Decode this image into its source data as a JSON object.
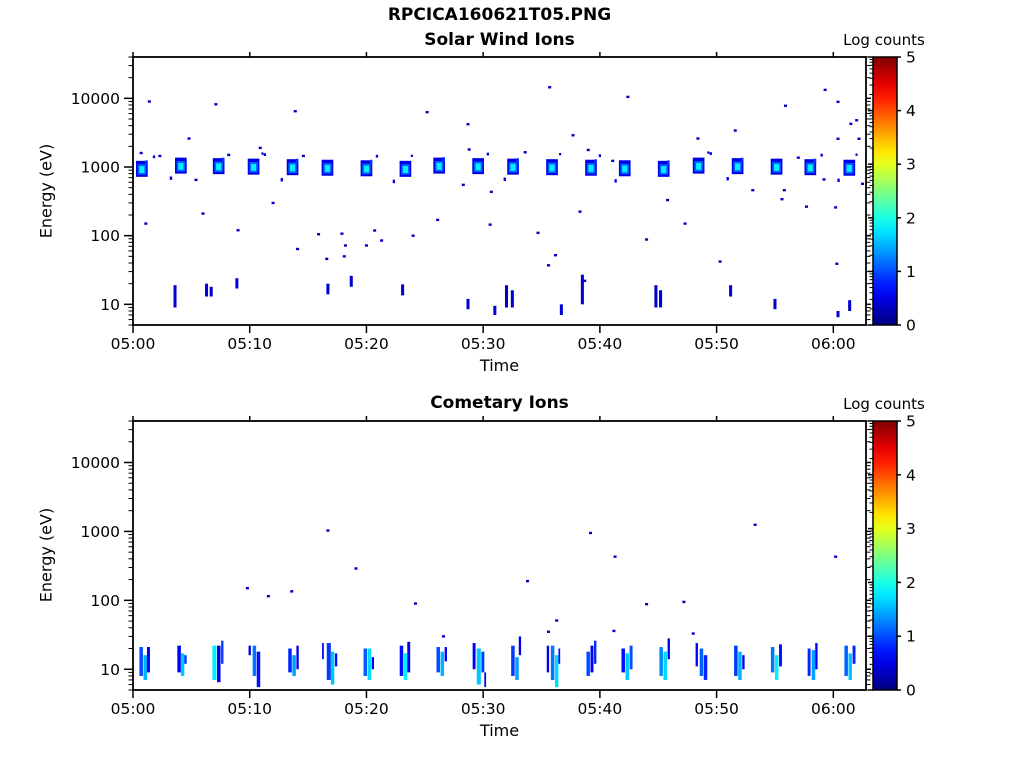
{
  "figure": {
    "title": "RPCICA160621T05.PNG",
    "background": "#ffffff",
    "axis_color": "#000000",
    "text_color": "#000000"
  },
  "colormap": {
    "name": "jet",
    "low_color": "#000080",
    "high_color": "#800000"
  },
  "chart_data": [
    {
      "type": "heatmap",
      "title": "Solar Wind Ions",
      "xlabel": "Time",
      "ylabel": "Energy (eV)",
      "x_tick_labels": [
        "05:00",
        "05:10",
        "05:20",
        "05:30",
        "05:40",
        "05:50",
        "06:00"
      ],
      "x_tick_minutes": [
        0,
        10,
        20,
        30,
        40,
        50,
        60
      ],
      "x_range_minutes": [
        0,
        62.8
      ],
      "y_scale": "log",
      "y_range_ev": [
        5,
        40000
      ],
      "y_tick_labels": [
        "10",
        "100",
        "1000",
        "10000"
      ],
      "y_tick_values": [
        10,
        100,
        1000,
        10000
      ],
      "grid": false,
      "colorbar_title": "Log counts",
      "colorbar_ticks": [
        "0",
        "1",
        "2",
        "3",
        "4",
        "5"
      ],
      "colorbar_range": [
        0,
        5
      ],
      "beam_band": {
        "description": "solar wind beam blobs repeating ~every 3.2 min",
        "energy_ev": [
          700,
          1350
        ],
        "core_energy_ev": [
          860,
          1100
        ],
        "edge_log_counts": 0.5,
        "mid_log_counts": 1.1,
        "core_log_counts": 1.8,
        "blob_halfwidth_min": 0.5,
        "blob_times_min": [
          0.9,
          4.1,
          7.2,
          10.4,
          13.6,
          16.8,
          20.0,
          23.2,
          26.3,
          29.5,
          32.7,
          35.9,
          39.1,
          42.2,
          45.4,
          48.6,
          51.8,
          55.0,
          58.1,
          61.3
        ]
      },
      "scatter_log_counts": 0.35,
      "scatter_points": [
        [
          0.7,
          1600
        ],
        [
          1.4,
          9000
        ],
        [
          1.1,
          150
        ],
        [
          2.3,
          1450
        ],
        [
          4.8,
          2600
        ],
        [
          5.4,
          650
        ],
        [
          6.0,
          210
        ],
        [
          7.1,
          8200
        ],
        [
          8.2,
          1500
        ],
        [
          9.0,
          120
        ],
        [
          10.9,
          1900
        ],
        [
          12.0,
          300
        ],
        [
          13.9,
          6500
        ],
        [
          14.1,
          64
        ],
        [
          14.6,
          1450
        ],
        [
          15.9,
          105
        ],
        [
          16.6,
          46
        ],
        [
          17.9,
          107
        ],
        [
          18.2,
          72
        ],
        [
          18.1,
          50
        ],
        [
          20.0,
          72
        ],
        [
          20.7,
          119
        ],
        [
          21.3,
          85
        ],
        [
          24.0,
          100
        ],
        [
          25.2,
          6300
        ],
        [
          26.1,
          170
        ],
        [
          28.3,
          550
        ],
        [
          28.7,
          4200
        ],
        [
          28.8,
          1800
        ],
        [
          30.6,
          145
        ],
        [
          30.7,
          435
        ],
        [
          33.6,
          1640
        ],
        [
          34.7,
          110
        ],
        [
          35.7,
          14500
        ],
        [
          35.6,
          37
        ],
        [
          36.2,
          52
        ],
        [
          37.7,
          2900
        ],
        [
          38.3,
          224
        ],
        [
          38.7,
          22
        ],
        [
          39.0,
          1770
        ],
        [
          41.1,
          1230
        ],
        [
          42.4,
          10500
        ],
        [
          44.0,
          88
        ],
        [
          45.8,
          330
        ],
        [
          47.3,
          150
        ],
        [
          48.4,
          2600
        ],
        [
          50.3,
          42
        ],
        [
          51.6,
          3400
        ],
        [
          53.1,
          460
        ],
        [
          55.6,
          340
        ],
        [
          55.8,
          460
        ],
        [
          55.9,
          7800
        ],
        [
          57.0,
          1370
        ],
        [
          57.7,
          265
        ],
        [
          59.2,
          660
        ],
        [
          59.3,
          13300
        ],
        [
          60.2,
          258
        ],
        [
          60.3,
          39
        ],
        [
          60.4,
          8900
        ],
        [
          60.4,
          2580
        ],
        [
          61.5,
          4260
        ],
        [
          62.0,
          4800
        ],
        [
          62.2,
          2580
        ],
        [
          62.5,
          570
        ]
      ],
      "bar_log_counts": 0.4,
      "low_energy_bars": [
        [
          3.6,
          9,
          19
        ],
        [
          6.3,
          13,
          20
        ],
        [
          6.7,
          13,
          18
        ],
        [
          8.9,
          17,
          24
        ],
        [
          16.7,
          14,
          20
        ],
        [
          18.7,
          18,
          26
        ],
        [
          23.1,
          13.5,
          19.5
        ],
        [
          28.7,
          8.5,
          12
        ],
        [
          31.0,
          7,
          9.5
        ],
        [
          32.0,
          9,
          19
        ],
        [
          32.5,
          9,
          16
        ],
        [
          36.7,
          7,
          10
        ],
        [
          38.5,
          10,
          27
        ],
        [
          44.8,
          9,
          19
        ],
        [
          45.2,
          9,
          16
        ],
        [
          51.2,
          13,
          19
        ],
        [
          55.0,
          8.5,
          12
        ],
        [
          60.4,
          6.5,
          8
        ],
        [
          61.4,
          8,
          11.5
        ]
      ]
    },
    {
      "type": "heatmap",
      "title": "Cometary Ions",
      "xlabel": "Time",
      "ylabel": "Energy (eV)",
      "x_tick_labels": [
        "05:00",
        "05:10",
        "05:20",
        "05:30",
        "05:40",
        "05:50",
        "06:00"
      ],
      "x_tick_minutes": [
        0,
        10,
        20,
        30,
        40,
        50,
        60
      ],
      "x_range_minutes": [
        0,
        62.8
      ],
      "y_scale": "log",
      "y_range_ev": [
        5,
        40000
      ],
      "y_tick_labels": [
        "10",
        "100",
        "1000",
        "10000"
      ],
      "y_tick_values": [
        10,
        100,
        1000,
        10000
      ],
      "grid": false,
      "colorbar_title": "Log counts",
      "colorbar_ticks": [
        "0",
        "1",
        "2",
        "3",
        "4",
        "5"
      ],
      "colorbar_range": [
        0,
        5
      ],
      "ion_bar_clusters": [
        {
          "t": 0.9,
          "stripes": [
            {
              "dt": -0.35,
              "w": 0.3,
              "e0": 8,
              "e1": 21,
              "v": 1.0
            },
            {
              "dt": 0.0,
              "w": 0.3,
              "e0": 7,
              "e1": 16,
              "v": 1.5
            },
            {
              "dt": 0.3,
              "w": 0.25,
              "e0": 9,
              "e1": 21,
              "v": 0.5
            }
          ]
        },
        {
          "t": 4.1,
          "stripes": [
            {
              "dt": -0.3,
              "w": 0.3,
              "e0": 9,
              "e1": 22,
              "v": 0.6
            },
            {
              "dt": 0.0,
              "w": 0.3,
              "e0": 8,
              "e1": 17,
              "v": 1.6
            },
            {
              "dt": 0.3,
              "w": 0.2,
              "e0": 12,
              "e1": 16,
              "v": 0.9
            }
          ]
        },
        {
          "t": 7.2,
          "stripes": [
            {
              "dt": -0.4,
              "w": 0.35,
              "e0": 7,
              "e1": 22,
              "v": 1.8
            },
            {
              "dt": 0.0,
              "w": 0.3,
              "e0": 6.5,
              "e1": 22,
              "v": 0.5
            },
            {
              "dt": 0.35,
              "w": 0.2,
              "e0": 12,
              "e1": 26,
              "v": 0.9
            }
          ]
        },
        {
          "t": 10.4,
          "stripes": [
            {
              "dt": -0.5,
              "w": 0.2,
              "e0": 16,
              "e1": 22,
              "v": 0.5
            },
            {
              "dt": -0.15,
              "w": 0.3,
              "e0": 8,
              "e1": 22,
              "v": 1.2
            },
            {
              "dt": 0.2,
              "w": 0.3,
              "e0": 5.5,
              "e1": 18,
              "v": 0.7
            }
          ]
        },
        {
          "t": 13.6,
          "stripes": [
            {
              "dt": -0.3,
              "w": 0.3,
              "e0": 9,
              "e1": 20,
              "v": 0.8
            },
            {
              "dt": 0.05,
              "w": 0.3,
              "e0": 8,
              "e1": 16,
              "v": 1.4
            },
            {
              "dt": 0.4,
              "w": 0.2,
              "e0": 10,
              "e1": 22,
              "v": 0.5
            }
          ]
        },
        {
          "t": 16.8,
          "stripes": [
            {
              "dt": -0.6,
              "w": 0.15,
              "e0": 14,
              "e1": 24,
              "v": 0.6
            },
            {
              "dt": -0.2,
              "w": 0.35,
              "e0": 7,
              "e1": 24,
              "v": 0.9
            },
            {
              "dt": 0.15,
              "w": 0.3,
              "e0": 6,
              "e1": 18,
              "v": 1.6
            },
            {
              "dt": 0.5,
              "w": 0.2,
              "e0": 11,
              "e1": 17,
              "v": 0.7
            }
          ]
        },
        {
          "t": 20.0,
          "stripes": [
            {
              "dt": -0.25,
              "w": 0.3,
              "e0": 8,
              "e1": 20,
              "v": 1.1
            },
            {
              "dt": 0.1,
              "w": 0.3,
              "e0": 7,
              "e1": 20,
              "v": 1.7
            },
            {
              "dt": 0.45,
              "w": 0.2,
              "e0": 10,
              "e1": 15,
              "v": 0.6
            }
          ]
        },
        {
          "t": 23.2,
          "stripes": [
            {
              "dt": -0.35,
              "w": 0.3,
              "e0": 8,
              "e1": 22,
              "v": 0.7
            },
            {
              "dt": 0.0,
              "w": 0.3,
              "e0": 7,
              "e1": 17,
              "v": 1.8
            },
            {
              "dt": 0.3,
              "w": 0.25,
              "e0": 9,
              "e1": 25,
              "v": 0.5
            }
          ]
        },
        {
          "t": 26.3,
          "stripes": [
            {
              "dt": -0.3,
              "w": 0.3,
              "e0": 9,
              "e1": 21,
              "v": 1.0
            },
            {
              "dt": 0.05,
              "w": 0.3,
              "e0": 8,
              "e1": 18,
              "v": 1.5
            },
            {
              "dt": 0.4,
              "w": 0.2,
              "e0": 13,
              "e1": 21,
              "v": 0.6
            }
          ]
        },
        {
          "t": 29.5,
          "stripes": [
            {
              "dt": -0.4,
              "w": 0.25,
              "e0": 10,
              "e1": 24,
              "v": 0.6
            },
            {
              "dt": -0.05,
              "w": 0.35,
              "e0": 6,
              "e1": 20,
              "v": 1.6
            },
            {
              "dt": 0.35,
              "w": 0.25,
              "e0": 9,
              "e1": 18,
              "v": 0.9
            },
            {
              "dt": 0.6,
              "w": 0.15,
              "e0": 5.5,
              "e1": 9,
              "v": 0.5
            }
          ]
        },
        {
          "t": 32.7,
          "stripes": [
            {
              "dt": -0.3,
              "w": 0.3,
              "e0": 8,
              "e1": 22,
              "v": 0.9
            },
            {
              "dt": 0.05,
              "w": 0.3,
              "e0": 7,
              "e1": 15,
              "v": 1.4
            },
            {
              "dt": 0.35,
              "w": 0.2,
              "e0": 16,
              "e1": 30,
              "v": 0.5
            }
          ]
        },
        {
          "t": 35.9,
          "stripes": [
            {
              "dt": -0.45,
              "w": 0.2,
              "e0": 9,
              "e1": 22,
              "v": 0.5
            },
            {
              "dt": -0.1,
              "w": 0.3,
              "e0": 7,
              "e1": 22,
              "v": 1.2
            },
            {
              "dt": 0.25,
              "w": 0.3,
              "e0": 5.5,
              "e1": 16,
              "v": 1.7
            },
            {
              "dt": 0.55,
              "w": 0.15,
              "e0": 12,
              "e1": 20,
              "v": 0.7
            }
          ]
        },
        {
          "t": 39.1,
          "stripes": [
            {
              "dt": -0.25,
              "w": 0.3,
              "e0": 8,
              "e1": 18,
              "v": 1.0
            },
            {
              "dt": 0.1,
              "w": 0.25,
              "e0": 9,
              "e1": 22,
              "v": 0.6
            },
            {
              "dt": 0.4,
              "w": 0.2,
              "e0": 12,
              "e1": 26,
              "v": 0.8
            }
          ]
        },
        {
          "t": 42.2,
          "stripes": [
            {
              "dt": -0.35,
              "w": 0.3,
              "e0": 9,
              "e1": 20,
              "v": 0.7
            },
            {
              "dt": 0.0,
              "w": 0.3,
              "e0": 7,
              "e1": 17,
              "v": 1.6
            },
            {
              "dt": 0.35,
              "w": 0.25,
              "e0": 10,
              "e1": 22,
              "v": 1.0
            }
          ]
        },
        {
          "t": 45.4,
          "stripes": [
            {
              "dt": -0.3,
              "w": 0.3,
              "e0": 8,
              "e1": 21,
              "v": 1.3
            },
            {
              "dt": 0.05,
              "w": 0.3,
              "e0": 7,
              "e1": 18,
              "v": 1.7
            },
            {
              "dt": 0.4,
              "w": 0.2,
              "e0": 14,
              "e1": 28,
              "v": 0.5
            }
          ]
        },
        {
          "t": 48.6,
          "stripes": [
            {
              "dt": -0.4,
              "w": 0.2,
              "e0": 11,
              "e1": 24,
              "v": 0.6
            },
            {
              "dt": -0.05,
              "w": 0.3,
              "e0": 8,
              "e1": 20,
              "v": 1.1
            },
            {
              "dt": 0.3,
              "w": 0.3,
              "e0": 7,
              "e1": 16,
              "v": 0.8
            }
          ]
        },
        {
          "t": 51.8,
          "stripes": [
            {
              "dt": -0.3,
              "w": 0.3,
              "e0": 8,
              "e1": 22,
              "v": 0.9
            },
            {
              "dt": 0.05,
              "w": 0.3,
              "e0": 7,
              "e1": 18,
              "v": 1.5
            },
            {
              "dt": 0.4,
              "w": 0.2,
              "e0": 10,
              "e1": 16,
              "v": 0.6
            }
          ]
        },
        {
          "t": 55.0,
          "stripes": [
            {
              "dt": -0.35,
              "w": 0.3,
              "e0": 9,
              "e1": 21,
              "v": 1.2
            },
            {
              "dt": 0.0,
              "w": 0.3,
              "e0": 7,
              "e1": 16,
              "v": 1.8
            },
            {
              "dt": 0.35,
              "w": 0.25,
              "e0": 11,
              "e1": 23,
              "v": 0.7
            }
          ]
        },
        {
          "t": 58.1,
          "stripes": [
            {
              "dt": -0.3,
              "w": 0.25,
              "e0": 8,
              "e1": 20,
              "v": 0.8
            },
            {
              "dt": 0.05,
              "w": 0.3,
              "e0": 7,
              "e1": 19,
              "v": 1.4
            },
            {
              "dt": 0.35,
              "w": 0.2,
              "e0": 10,
              "e1": 24,
              "v": 0.6
            }
          ]
        },
        {
          "t": 61.3,
          "stripes": [
            {
              "dt": -0.35,
              "w": 0.3,
              "e0": 8,
              "e1": 22,
              "v": 1.1
            },
            {
              "dt": 0.0,
              "w": 0.3,
              "e0": 7,
              "e1": 17,
              "v": 1.6
            },
            {
              "dt": 0.35,
              "w": 0.25,
              "e0": 12,
              "e1": 22,
              "v": 0.8
            }
          ]
        }
      ],
      "scatter_log_counts": 0.35,
      "scatter_points": [
        [
          16.7,
          1030
        ],
        [
          39.2,
          950
        ],
        [
          53.3,
          1250
        ],
        [
          60.2,
          430
        ],
        [
          41.3,
          430
        ],
        [
          19.1,
          290
        ],
        [
          33.8,
          190
        ],
        [
          11.6,
          115
        ],
        [
          13.6,
          135
        ],
        [
          24.2,
          90
        ],
        [
          44.0,
          88
        ],
        [
          47.2,
          95
        ],
        [
          36.3,
          51
        ],
        [
          35.6,
          35
        ],
        [
          41.2,
          36
        ],
        [
          26.6,
          30
        ],
        [
          48.0,
          33
        ],
        [
          9.8,
          150
        ]
      ]
    }
  ]
}
